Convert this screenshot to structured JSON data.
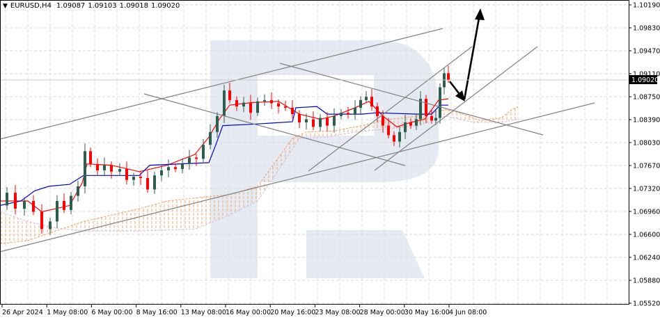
{
  "header": {
    "symbol": "EURUSD,H4",
    "open": "1.09087",
    "high": "1.09103",
    "low": "1.09018",
    "close": "1.09020",
    "menu_icon": "triangle-down-icon"
  },
  "price_axis": {
    "labels": [
      "1.10190",
      "1.09830",
      "1.09470",
      "1.09110",
      "1.08750",
      "1.08390",
      "1.08030",
      "1.07670",
      "1.07320",
      "1.06960",
      "1.06600",
      "1.06240",
      "1.05880",
      "1.05520"
    ],
    "current_price": "1.09020"
  },
  "time_axis": {
    "labels": [
      "26 Apr 2024",
      "1 May 08:00",
      "6 May 00:00",
      "8 May 16:00",
      "13 May 08:00",
      "16 May 00:00",
      "20 May 16:00",
      "23 May 08:00",
      "28 May 00:00",
      "30 May 16:00",
      "4 Jun 08:00"
    ]
  },
  "colors": {
    "bull": "#2e5e4e",
    "bear": "#ff0000",
    "tenkan": "#ff0000",
    "kijun": "#0000cc",
    "senkou_a": "#f0a060",
    "senkou_b": "#d8b8d8",
    "trendline": "#808080",
    "arrow": "#000000",
    "watermark": "#e6ebf3",
    "grid": "#d8d8d8"
  },
  "chart_data": {
    "type": "candlestick",
    "title": "EURUSD,H4",
    "xlabel": "",
    "ylabel": "",
    "ylim": [
      1.0552,
      1.1019
    ],
    "grid": true,
    "indicators": [
      "Ichimoku Kinko Hyo (Tenkan-sen red, Kijun-sen blue, Kumo cloud)"
    ],
    "annotations": [
      "Ascending channel (grey parallel lines)",
      "Descending channel (grey parallel lines)",
      "Rising wedge / channel lines near latest bars",
      "Forecast arrow: down to ~1.0870 then up to ~1.1010"
    ],
    "x_ticks": [
      "26 Apr 2024",
      "1 May 08:00",
      "6 May 00:00",
      "8 May 16:00",
      "13 May 08:00",
      "16 May 00:00",
      "20 May 16:00",
      "23 May 08:00",
      "28 May 00:00",
      "30 May 16:00",
      "4 Jun 08:00"
    ],
    "y_ticks": [
      1.1019,
      1.0983,
      1.0947,
      1.0911,
      1.0875,
      1.0839,
      1.0803,
      1.0767,
      1.0732,
      1.0696,
      1.066,
      1.0624,
      1.0588,
      1.0552
    ],
    "last_bar": {
      "open": 1.09087,
      "high": 1.09103,
      "low": 1.09018,
      "close": 1.0902
    },
    "approx_close_path": [
      {
        "x": "26 Apr 2024",
        "close": 1.07
      },
      {
        "x": "1 May 08:00",
        "close": 1.0672
      },
      {
        "x": "3 May",
        "close": 1.076
      },
      {
        "x": "6 May 00:00",
        "close": 1.0765
      },
      {
        "x": "8 May 16:00",
        "close": 1.0745
      },
      {
        "x": "13 May 08:00",
        "close": 1.079
      },
      {
        "x": "15 May",
        "close": 1.089
      },
      {
        "x": "16 May 00:00",
        "close": 1.087
      },
      {
        "x": "20 May 16:00",
        "close": 1.086
      },
      {
        "x": "23 May 08:00",
        "close": 1.082
      },
      {
        "x": "28 May 00:00",
        "close": 1.088
      },
      {
        "x": "30 May 16:00",
        "close": 1.081
      },
      {
        "x": "3 Jun",
        "close": 1.0885
      },
      {
        "x": "4 Jun 08:00",
        "close": 1.0902
      }
    ]
  }
}
